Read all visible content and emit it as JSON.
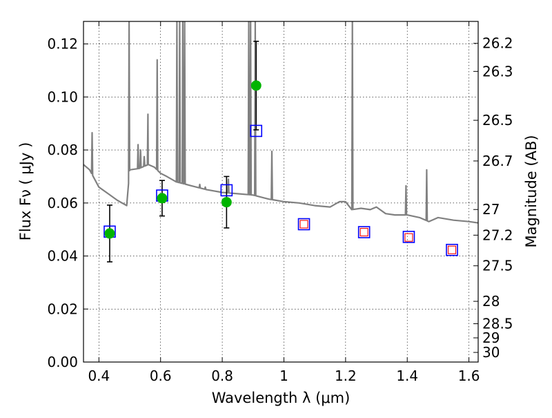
{
  "chart_data": {
    "type": "scatter",
    "xlabel": "Wavelength  λ (μm)",
    "ylabel": "Flux  Fν  ( μJy )",
    "y2label": "Magnitude (AB)",
    "xlim": [
      0.35,
      1.63
    ],
    "ylim": [
      0.0,
      0.1285
    ],
    "grid": true,
    "x_ticks": [
      {
        "value": 0.4,
        "label": "0.4"
      },
      {
        "value": 0.6,
        "label": "0.6"
      },
      {
        "value": 0.8,
        "label": "0.8"
      },
      {
        "value": 1.0,
        "label": "1"
      },
      {
        "value": 1.2,
        "label": "1.2"
      },
      {
        "value": 1.4,
        "label": "1.4"
      },
      {
        "value": 1.6,
        "label": "1.6"
      }
    ],
    "y_ticks": [
      {
        "value": 0.0,
        "label": "0.00"
      },
      {
        "value": 0.02,
        "label": "0.02"
      },
      {
        "value": 0.04,
        "label": "0.04"
      },
      {
        "value": 0.06,
        "label": "0.06"
      },
      {
        "value": 0.08,
        "label": "0.08"
      },
      {
        "value": 0.1,
        "label": "0.10"
      },
      {
        "value": 0.12,
        "label": "0.12"
      }
    ],
    "y2_ticks": [
      {
        "value": 26.2,
        "label": "26.2"
      },
      {
        "value": 26.3,
        "label": "26.3"
      },
      {
        "value": 26.5,
        "label": "26.5"
      },
      {
        "value": 26.7,
        "label": "26.7"
      },
      {
        "value": 27,
        "label": "27"
      },
      {
        "value": 27.2,
        "label": "27.2"
      },
      {
        "value": 27.5,
        "label": "27.5"
      },
      {
        "value": 28,
        "label": "28"
      },
      {
        "value": 28.5,
        "label": "28.5"
      },
      {
        "value": 29,
        "label": "29"
      },
      {
        "value": 30,
        "label": "30"
      }
    ],
    "series": [
      {
        "kind": "model_spectrum",
        "color": "#808080",
        "continuum": [
          [
            0.35,
            0.0745
          ],
          [
            0.37,
            0.0725
          ],
          [
            0.4,
            0.066
          ],
          [
            0.43,
            0.0635
          ],
          [
            0.46,
            0.061
          ],
          [
            0.49,
            0.059
          ],
          [
            0.5,
            0.0725
          ],
          [
            0.53,
            0.073
          ],
          [
            0.56,
            0.0745
          ],
          [
            0.58,
            0.0735
          ],
          [
            0.6,
            0.0712
          ],
          [
            0.62,
            0.07
          ],
          [
            0.65,
            0.068
          ],
          [
            0.7,
            0.0665
          ],
          [
            0.75,
            0.065
          ],
          [
            0.8,
            0.064
          ],
          [
            0.85,
            0.0635
          ],
          [
            0.9,
            0.063
          ],
          [
            0.95,
            0.0615
          ],
          [
            1.0,
            0.0605
          ],
          [
            1.05,
            0.06
          ],
          [
            1.1,
            0.059
          ],
          [
            1.15,
            0.0585
          ],
          [
            1.18,
            0.0605
          ],
          [
            1.2,
            0.0605
          ],
          [
            1.22,
            0.0575
          ],
          [
            1.25,
            0.058
          ],
          [
            1.28,
            0.0575
          ],
          [
            1.3,
            0.0585
          ],
          [
            1.33,
            0.056
          ],
          [
            1.36,
            0.0555
          ],
          [
            1.4,
            0.0555
          ],
          [
            1.44,
            0.0545
          ],
          [
            1.47,
            0.053
          ],
          [
            1.5,
            0.0545
          ],
          [
            1.55,
            0.0535
          ],
          [
            1.6,
            0.053
          ],
          [
            1.63,
            0.0525
          ]
        ],
        "lines": [
          [
            0.378,
            0.0865
          ],
          [
            0.498,
            0.1285
          ],
          [
            0.527,
            0.082
          ],
          [
            0.535,
            0.08
          ],
          [
            0.547,
            0.0775
          ],
          [
            0.559,
            0.0935
          ],
          [
            0.589,
            0.114
          ],
          [
            0.653,
            0.1285
          ],
          [
            0.662,
            0.1285
          ],
          [
            0.672,
            0.1285
          ],
          [
            0.678,
            0.1285
          ],
          [
            0.727,
            0.067
          ],
          [
            0.745,
            0.066
          ],
          [
            0.82,
            0.069
          ],
          [
            0.886,
            0.1285
          ],
          [
            0.892,
            0.1285
          ],
          [
            0.907,
            0.1285
          ],
          [
            0.961,
            0.0795
          ],
          [
            1.222,
            0.1285
          ],
          [
            1.396,
            0.0665
          ],
          [
            1.463,
            0.0725
          ]
        ]
      },
      {
        "kind": "observed",
        "marker": "circle",
        "color": "#00b400",
        "points": [
          {
            "x": 0.435,
            "y": 0.0485,
            "err": 0.0107
          },
          {
            "x": 0.605,
            "y": 0.0618,
            "err": 0.0067
          },
          {
            "x": 0.814,
            "y": 0.0603,
            "err": 0.0097
          },
          {
            "x": 0.91,
            "y": 0.1043,
            "err": 0.0167
          }
        ]
      },
      {
        "kind": "model_photometry",
        "marker": "square",
        "color": "#0000ff",
        "points": [
          {
            "x": 0.435,
            "y": 0.0492
          },
          {
            "x": 0.605,
            "y": 0.0628
          },
          {
            "x": 0.814,
            "y": 0.0648
          },
          {
            "x": 0.91,
            "y": 0.0872
          },
          {
            "x": 1.065,
            "y": 0.052
          },
          {
            "x": 1.26,
            "y": 0.049
          },
          {
            "x": 1.405,
            "y": 0.0472
          },
          {
            "x": 1.545,
            "y": 0.0423
          }
        ]
      },
      {
        "kind": "model_photometry_nir",
        "marker": "square",
        "color": "#ff0000",
        "points": [
          {
            "x": 1.065,
            "y": 0.052
          },
          {
            "x": 1.26,
            "y": 0.049
          },
          {
            "x": 1.405,
            "y": 0.047
          },
          {
            "x": 1.545,
            "y": 0.0423
          }
        ]
      }
    ]
  }
}
